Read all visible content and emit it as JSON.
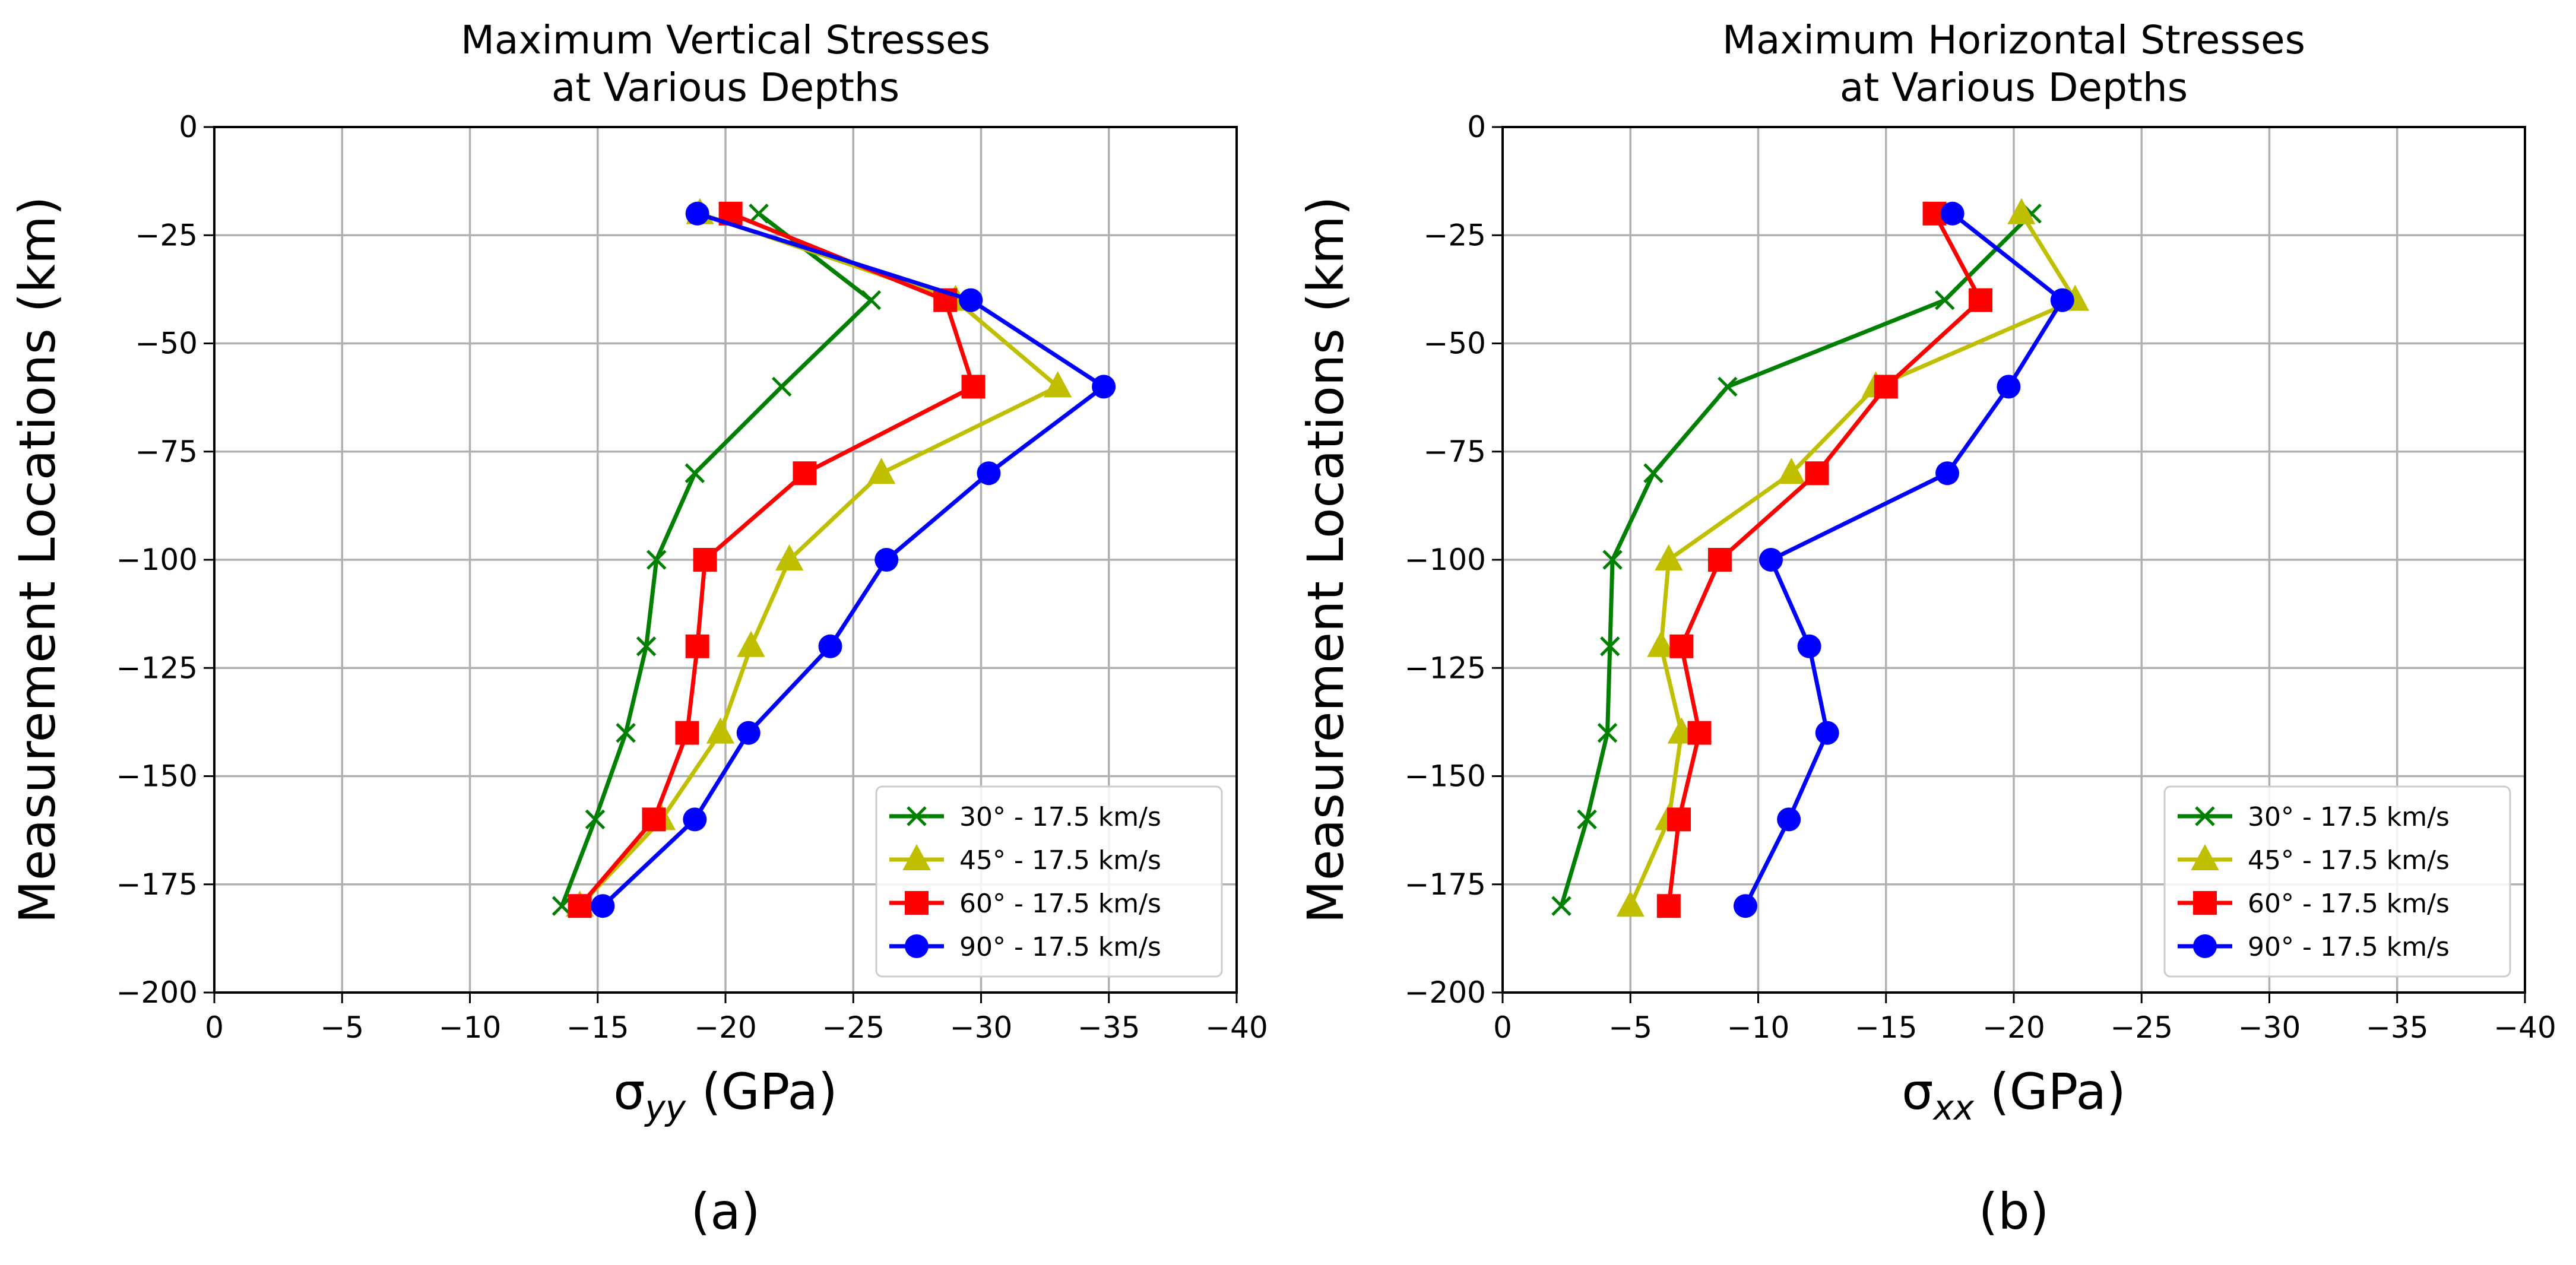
{
  "chart_data": [
    {
      "type": "line",
      "panel_label": "(a)",
      "title_lines": [
        "Maximum Vertical Stresses",
        "at Various Depths"
      ],
      "xlabel_main": "σ",
      "xlabel_sub": "yy",
      "xlabel_unit": " (GPa)",
      "ylabel": "Measurement Locations (km)",
      "xlim": [
        0,
        -40
      ],
      "ylim": [
        -200,
        0
      ],
      "xticks": [
        0,
        -5,
        -10,
        -15,
        -20,
        -25,
        -30,
        -35,
        -40
      ],
      "xtick_labels": [
        "0",
        "−5",
        "−10",
        "−15",
        "−20",
        "−25",
        "−30",
        "−35",
        "−40"
      ],
      "yticks": [
        0,
        -25,
        -50,
        -75,
        -100,
        -125,
        -150,
        -175,
        -200
      ],
      "ytick_labels": [
        "0",
        "−25",
        "−50",
        "−75",
        "−100",
        "−125",
        "−150",
        "−175",
        "−200"
      ],
      "grid": true,
      "legend_position": "lower-right",
      "y": [
        -20,
        -40,
        -60,
        -80,
        -100,
        -120,
        -140,
        -160,
        -180
      ],
      "series": [
        {
          "name": "30° - 17.5 km/s",
          "color": "#008000",
          "marker": "x",
          "values": [
            -21.3,
            -25.7,
            -22.2,
            -18.8,
            -17.3,
            -16.9,
            -16.1,
            -14.9,
            -13.6
          ]
        },
        {
          "name": "45° - 17.5 km/s",
          "color": "#bfbf00",
          "marker": "triangle",
          "values": [
            -19.0,
            -29.0,
            -33.0,
            -26.1,
            -22.5,
            -21.0,
            -19.8,
            -17.5,
            -14.3
          ]
        },
        {
          "name": "60° - 17.5 km/s",
          "color": "#ff0000",
          "marker": "square",
          "values": [
            -20.2,
            -28.6,
            -29.7,
            -23.1,
            -19.2,
            -18.9,
            -18.5,
            -17.2,
            -14.3
          ]
        },
        {
          "name": "90° - 17.5 km/s",
          "color": "#0000ff",
          "marker": "circle",
          "values": [
            -18.9,
            -29.6,
            -34.8,
            -30.3,
            -26.3,
            -24.1,
            -20.9,
            -18.8,
            -15.2
          ]
        }
      ]
    },
    {
      "type": "line",
      "panel_label": "(b)",
      "title_lines": [
        "Maximum Horizontal Stresses",
        "at Various Depths"
      ],
      "xlabel_main": "σ",
      "xlabel_sub": "xx",
      "xlabel_unit": " (GPa)",
      "ylabel": "Measurement Locations (km)",
      "xlim": [
        0,
        -40
      ],
      "ylim": [
        -200,
        0
      ],
      "xticks": [
        0,
        -5,
        -10,
        -15,
        -20,
        -25,
        -30,
        -35,
        -40
      ],
      "xtick_labels": [
        "0",
        "−5",
        "−10",
        "−15",
        "−20",
        "−25",
        "−30",
        "−35",
        "−40"
      ],
      "yticks": [
        0,
        -25,
        -50,
        -75,
        -100,
        -125,
        -150,
        -175,
        -200
      ],
      "ytick_labels": [
        "0",
        "−25",
        "−50",
        "−75",
        "−100",
        "−125",
        "−150",
        "−175",
        "−200"
      ],
      "grid": true,
      "legend_position": "lower-right",
      "y": [
        -20,
        -40,
        -60,
        -80,
        -100,
        -120,
        -140,
        -160,
        -180
      ],
      "series": [
        {
          "name": "30° - 17.5 km/s",
          "color": "#008000",
          "marker": "x",
          "values": [
            -20.7,
            -17.3,
            -8.8,
            -5.9,
            -4.3,
            -4.2,
            -4.1,
            -3.3,
            -2.3
          ]
        },
        {
          "name": "45° - 17.5 km/s",
          "color": "#bfbf00",
          "marker": "triangle",
          "values": [
            -20.3,
            -22.4,
            -14.6,
            -11.3,
            -6.5,
            -6.2,
            -7.0,
            -6.5,
            -5.0
          ]
        },
        {
          "name": "60° - 17.5 km/s",
          "color": "#ff0000",
          "marker": "square",
          "values": [
            -16.9,
            -18.7,
            -15.0,
            -12.3,
            -8.5,
            -7.0,
            -7.7,
            -6.9,
            -6.5
          ]
        },
        {
          "name": "90° - 17.5 km/s",
          "color": "#0000ff",
          "marker": "circle",
          "values": [
            -17.6,
            -21.9,
            -19.8,
            -17.4,
            -10.5,
            -12.0,
            -12.7,
            -11.2,
            -9.5
          ]
        }
      ]
    }
  ]
}
